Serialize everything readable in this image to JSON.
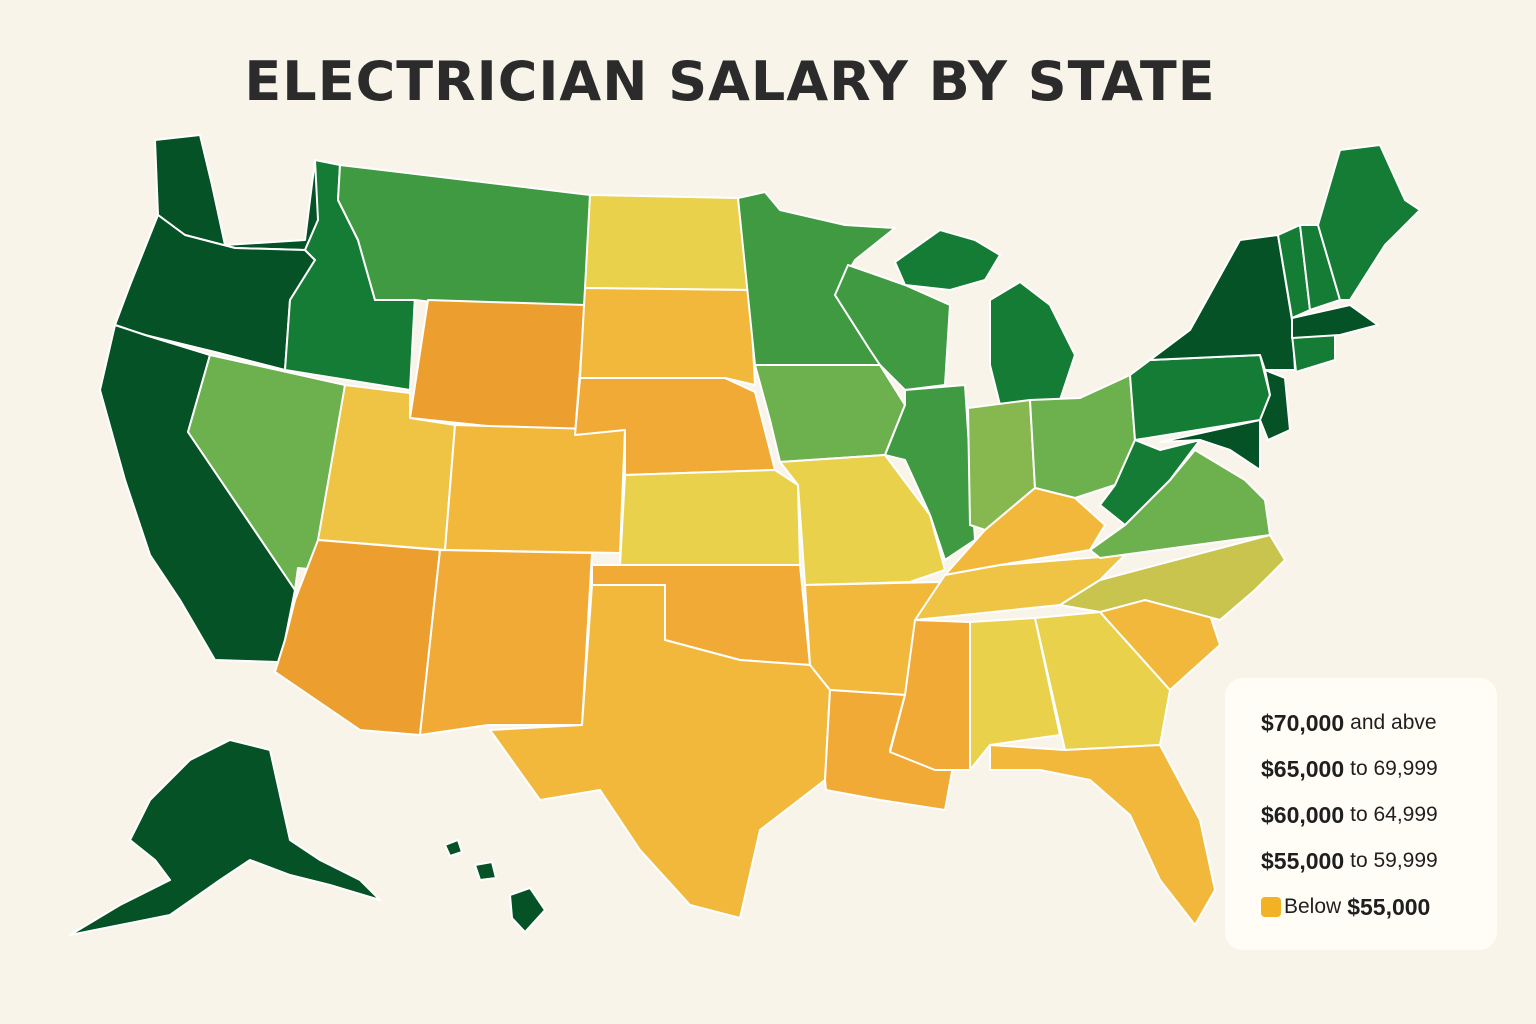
{
  "title": "ELECTRICIAN SALARY BY STATE",
  "colors": {
    "t70": "#045226",
    "t65": "#147c34",
    "t60": "#3f9a42",
    "t55": "#6db14e",
    "t55b": "#86b84f",
    "mid": "#c8c44d",
    "y1": "#ead14b",
    "y2": "#efc445",
    "y3": "#f2b83c",
    "o1": "#f0aa35",
    "o2": "#ec9f2f"
  },
  "legend": [
    {
      "amount": "$70,000",
      "rest": "and abve"
    },
    {
      "amount": "$65,000",
      "rest": "to 69,999"
    },
    {
      "amount": "$60,000",
      "rest": "to 64,999"
    },
    {
      "amount": "$55,000",
      "rest": "to 59,999"
    },
    {
      "amount": "$55,000",
      "prefix": "Below",
      "swatch": "#f3b225"
    }
  ],
  "states": [
    {
      "id": "WA",
      "tier": "t70"
    },
    {
      "id": "OR",
      "tier": "t70"
    },
    {
      "id": "CA",
      "tier": "t70"
    },
    {
      "id": "AK",
      "tier": "t70"
    },
    {
      "id": "HI",
      "tier": "t70"
    },
    {
      "id": "NY",
      "tier": "t70"
    },
    {
      "id": "MA",
      "tier": "t70"
    },
    {
      "id": "NJ",
      "tier": "t70"
    },
    {
      "id": "MD",
      "tier": "t70"
    },
    {
      "id": "ID",
      "tier": "t65"
    },
    {
      "id": "MI",
      "tier": "t65"
    },
    {
      "id": "PA",
      "tier": "t65"
    },
    {
      "id": "WV",
      "tier": "t65"
    },
    {
      "id": "VT",
      "tier": "t65"
    },
    {
      "id": "NH",
      "tier": "t65"
    },
    {
      "id": "ME",
      "tier": "t65"
    },
    {
      "id": "CT",
      "tier": "t65"
    },
    {
      "id": "MT",
      "tier": "t60"
    },
    {
      "id": "MN",
      "tier": "t60"
    },
    {
      "id": "WI",
      "tier": "t60"
    },
    {
      "id": "IL",
      "tier": "t60"
    },
    {
      "id": "NV",
      "tier": "t55"
    },
    {
      "id": "IA",
      "tier": "t55"
    },
    {
      "id": "OH",
      "tier": "t55"
    },
    {
      "id": "VA",
      "tier": "t55"
    },
    {
      "id": "IN",
      "tier": "t55b"
    },
    {
      "id": "NC",
      "tier": "mid"
    },
    {
      "id": "ND",
      "tier": "y1"
    },
    {
      "id": "KS",
      "tier": "y1"
    },
    {
      "id": "MO",
      "tier": "y1"
    },
    {
      "id": "AL",
      "tier": "y1"
    },
    {
      "id": "GA",
      "tier": "y1"
    },
    {
      "id": "UT",
      "tier": "y2"
    },
    {
      "id": "TN",
      "tier": "y2"
    },
    {
      "id": "KY",
      "tier": "y3"
    },
    {
      "id": "SD",
      "tier": "y3"
    },
    {
      "id": "CO",
      "tier": "y3"
    },
    {
      "id": "TX",
      "tier": "y3"
    },
    {
      "id": "AR",
      "tier": "y3"
    },
    {
      "id": "SC",
      "tier": "y3"
    },
    {
      "id": "FL",
      "tier": "y3"
    },
    {
      "id": "NE",
      "tier": "o1"
    },
    {
      "id": "OK",
      "tier": "o1"
    },
    {
      "id": "NM",
      "tier": "o1"
    },
    {
      "id": "LA",
      "tier": "o1"
    },
    {
      "id": "MS",
      "tier": "o1"
    },
    {
      "id": "WY",
      "tier": "o2"
    },
    {
      "id": "AZ",
      "tier": "o2"
    }
  ]
}
